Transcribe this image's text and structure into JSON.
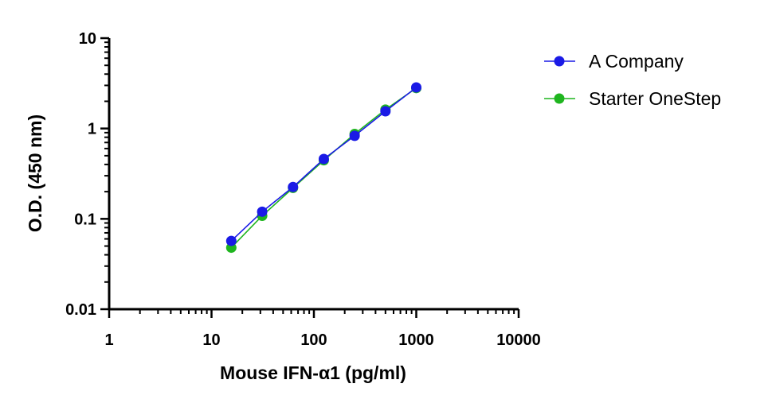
{
  "chart_data": {
    "type": "scatter",
    "xlabel": "Mouse IFN-α1 (pg/ml)",
    "ylabel": "O.D. (450 nm)",
    "xscale": "log",
    "yscale": "log",
    "xlim": [
      1,
      10000
    ],
    "ylim": [
      0.01,
      10
    ],
    "x_ticks": [
      "1",
      "10",
      "100",
      "1000",
      "10000"
    ],
    "y_ticks": [
      "0.01",
      "0.1",
      "1",
      "10"
    ],
    "grid": false,
    "legend_position": "right",
    "connected": true,
    "series": [
      {
        "name": "A Company",
        "color": "#1a1ae6",
        "x": [
          15.6,
          31.25,
          62.5,
          125,
          250,
          500,
          1000
        ],
        "y": [
          0.057,
          0.12,
          0.225,
          0.46,
          0.83,
          1.55,
          2.85
        ]
      },
      {
        "name": "Starter OneStep",
        "color": "#1fb51f",
        "x": [
          15.6,
          31.25,
          62.5,
          125,
          250,
          500,
          1000
        ],
        "y": [
          0.048,
          0.108,
          0.22,
          0.445,
          0.87,
          1.62,
          2.8
        ]
      }
    ]
  }
}
